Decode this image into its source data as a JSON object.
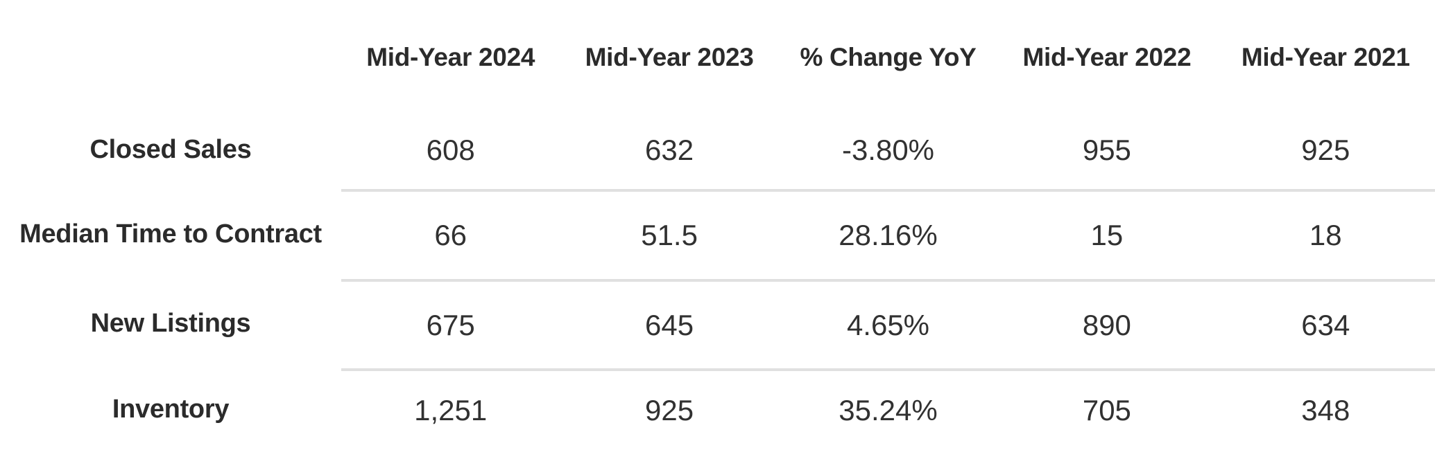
{
  "chart_data": {
    "type": "table",
    "columns": [
      "Mid-Year 2024",
      "Mid-Year 2023",
      "% Change YoY",
      "Mid-Year 2022",
      "Mid-Year 2021"
    ],
    "rows": [
      {
        "label": "Closed Sales",
        "values": [
          "608",
          "632",
          "-3.80%",
          "955",
          "925"
        ]
      },
      {
        "label": "Median Time to Contract",
        "values": [
          "66",
          "51.5",
          "28.16%",
          "15",
          "18"
        ]
      },
      {
        "label": "New Listings",
        "values": [
          "675",
          "645",
          "4.65%",
          "890",
          "634"
        ]
      },
      {
        "label": "Inventory",
        "values": [
          "1,251",
          "925",
          "35.24%",
          "705",
          "348"
        ]
      }
    ],
    "layout": {
      "grid": "horizontal dividers between value rows only, not under labels",
      "divider_color": "#e0e0e0",
      "text_color": "#2b2b2b",
      "background": "#ffffff"
    }
  }
}
